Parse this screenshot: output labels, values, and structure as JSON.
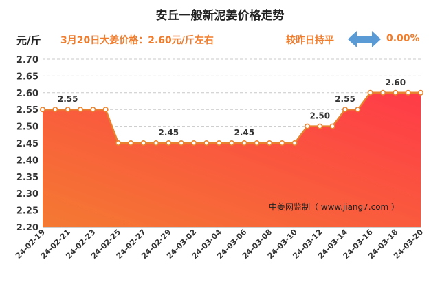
{
  "header": {
    "title": "安丘一般新泥姜价格走势",
    "unit": "元/斤",
    "price_note": "3月20日大姜价格：2.60元/斤左右",
    "compare_label": "较昨日持平",
    "compare_icon": "left-right-arrow-icon",
    "change_value": "0.00%"
  },
  "colors": {
    "accent": "#ef7d2d",
    "line": "#e8822e",
    "fill_top": "#ff3b48",
    "fill_bottom": "#f47a32",
    "arrow": "#5b9bd5"
  },
  "chart_data": {
    "type": "area",
    "title": "安丘一般新泥姜价格走势",
    "ylabel": "元/斤",
    "xlabel": "",
    "ylim": [
      2.2,
      2.7
    ],
    "yticks": [
      "2.20",
      "2.25",
      "2.30",
      "2.35",
      "2.40",
      "2.45",
      "2.50",
      "2.55",
      "2.60",
      "2.65",
      "2.70"
    ],
    "grid": true,
    "x": [
      "24-02-19",
      "24-02-20",
      "24-02-21",
      "24-02-22",
      "24-02-23",
      "24-02-24",
      "24-02-25",
      "24-02-26",
      "24-02-27",
      "24-02-28",
      "24-02-29",
      "24-03-01",
      "24-03-02",
      "24-03-03",
      "24-03-04",
      "24-03-05",
      "24-03-06",
      "24-03-07",
      "24-03-08",
      "24-03-09",
      "24-03-10",
      "24-03-11",
      "24-03-12",
      "24-03-13",
      "24-03-14",
      "24-03-15",
      "24-03-16",
      "24-03-17",
      "24-03-18",
      "24-03-19",
      "24-03-20"
    ],
    "xtick_labels": [
      "24-02-19",
      "24-02-21",
      "24-02-23",
      "24-02-25",
      "24-02-27",
      "24-02-29",
      "24-03-02",
      "24-03-04",
      "24-03-06",
      "24-03-08",
      "24-03-10",
      "24-03-12",
      "24-03-14",
      "24-03-16",
      "24-03-18",
      "24-03-20"
    ],
    "values": [
      2.55,
      2.55,
      2.55,
      2.55,
      2.55,
      2.55,
      2.45,
      2.45,
      2.45,
      2.45,
      2.45,
      2.45,
      2.45,
      2.45,
      2.45,
      2.45,
      2.45,
      2.45,
      2.45,
      2.45,
      2.45,
      2.5,
      2.5,
      2.5,
      2.55,
      2.55,
      2.6,
      2.6,
      2.6,
      2.6,
      2.6
    ],
    "data_labels": [
      {
        "x": "24-02-21",
        "value": 2.55,
        "text": "2.55"
      },
      {
        "x": "24-02-29",
        "value": 2.45,
        "text": "2.45"
      },
      {
        "x": "24-03-06",
        "value": 2.45,
        "text": "2.45"
      },
      {
        "x": "24-03-12",
        "value": 2.5,
        "text": "2.50"
      },
      {
        "x": "24-03-14",
        "value": 2.55,
        "text": "2.55"
      },
      {
        "x": "24-03-18",
        "value": 2.6,
        "text": "2.60"
      }
    ],
    "annotation": "中姜网监制（ www.jiang7.com ）"
  }
}
